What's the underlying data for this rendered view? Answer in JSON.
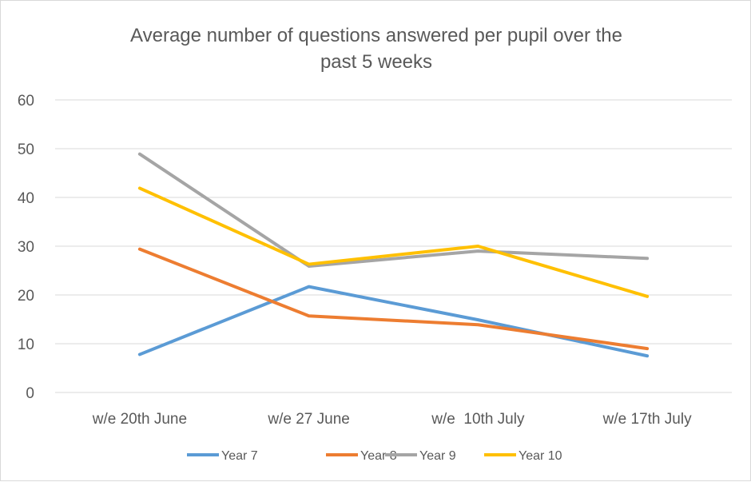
{
  "chart_data": {
    "type": "line",
    "title_lines": [
      "Average number of questions answered per pupil over the",
      "past 5 weeks"
    ],
    "categories": [
      "w/e 20th June",
      "w/e 27 June",
      "w/e  10th July",
      "w/e 17th July"
    ],
    "ylim": [
      0,
      60
    ],
    "yticks": [
      0,
      10,
      20,
      30,
      40,
      50,
      60
    ],
    "grid": true,
    "legend_position": "bottom",
    "series": [
      {
        "name": "Year 7",
        "color": "#5B9BD5",
        "values": [
          7.8,
          21.7,
          14.9,
          7.5
        ]
      },
      {
        "name": "Year 8",
        "color": "#ED7D31",
        "values": [
          29.4,
          15.7,
          13.9,
          9.0
        ]
      },
      {
        "name": "Year 9",
        "color": "#A5A5A5",
        "values": [
          48.9,
          25.9,
          29.0,
          27.5
        ]
      },
      {
        "name": "Year 10",
        "color": "#FFC000",
        "values": [
          41.9,
          26.3,
          30.0,
          19.7
        ]
      }
    ]
  }
}
